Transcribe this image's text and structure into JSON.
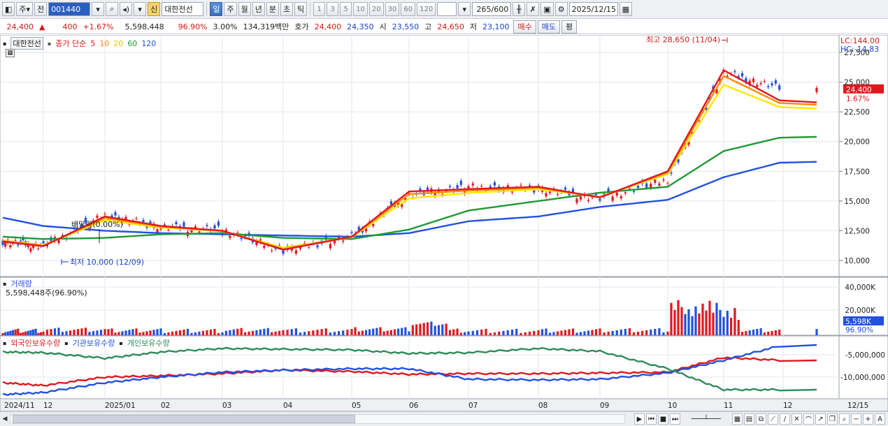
{
  "toolbar": {
    "market_toggle": "주",
    "prev_label": "전",
    "code": "001440",
    "new_badge": "신",
    "stock_name": "대한전선",
    "periods": [
      "일",
      "주",
      "월",
      "년",
      "분",
      "초",
      "틱"
    ],
    "active_period": "일",
    "minute_steps": [
      "1",
      "3",
      "5",
      "10",
      "20",
      "30",
      "60",
      "120"
    ],
    "count": "265",
    "count_max": "/600",
    "date": "2025/12/15"
  },
  "quote": {
    "price": "24,400",
    "change": "400",
    "change_pct": "+1.67%",
    "volume": "5,598,448",
    "volume_ratio": "96.90%",
    "rate": "3.00%",
    "amount": "134,319백만",
    "bid_label": "호가",
    "ask": "24,400",
    "bid": "24,350",
    "open_label": "시",
    "open": "23,550",
    "high_label": "고",
    "high": "24,650",
    "low_label": "저",
    "low": "23,100",
    "buy_btn": "매수",
    "sell_btn": "매도",
    "eval_btn": "평"
  },
  "price_panel": {
    "name_tag": "대한전선",
    "series_label": "종가 단순",
    "ma_periods": [
      "5",
      "10",
      "20",
      "60",
      "120"
    ],
    "ma_colors": [
      "#e0181e",
      "#ff8a00",
      "#ffe600",
      "#1e9a34",
      "#2250e0"
    ],
    "lc": "LC:144.00",
    "hc": "HC:-14.83",
    "y_ticks": [
      "27,500",
      "25,000",
      "22,500",
      "20,000",
      "17,500",
      "15,000",
      "12,500",
      "10,000"
    ],
    "current_price": "24,400",
    "current_pct": "1.67%",
    "high_annotation": "최고 28,650 (11/04)",
    "low_annotation": "최저 10,000 (12/09)",
    "dividend_annotation": "배당락(0.00%)"
  },
  "volume_panel": {
    "title": "거래량",
    "summary": "5,598,448주(96.90%)",
    "y_ticks": [
      "40,000K",
      "20,000K"
    ],
    "current": "5,598K",
    "current_pct": "96.90%"
  },
  "holding_panel": {
    "series": [
      "외국인보유수량",
      "기관보유수량",
      "개인보유수량"
    ],
    "colors": [
      "#e0181e",
      "#2250e0",
      "#2e8b57"
    ],
    "y_ticks": [
      "-5,000,000",
      "-10,000,000"
    ]
  },
  "x_axis": {
    "labels": [
      "2024/11",
      "12",
      "2025/01",
      "02",
      "03",
      "04",
      "05",
      "06",
      "07",
      "08",
      "09",
      "10",
      "11",
      "12",
      "12/15"
    ]
  },
  "chart_data": {
    "type": "line",
    "title": "대한전선",
    "ylim": [
      9000,
      28500
    ],
    "months": [
      "2024/11",
      "12",
      "2025/01",
      "02",
      "03",
      "04",
      "05",
      "06",
      "07",
      "08",
      "09",
      "10",
      "11",
      "12"
    ],
    "close_monthly": [
      11600,
      11200,
      13800,
      12800,
      12600,
      10800,
      12000,
      15500,
      16200,
      16000,
      15200,
      16800,
      25800,
      24400
    ],
    "series": [
      {
        "name": "5",
        "values": [
          11600,
          11200,
          13700,
          12900,
          12500,
          10900,
          12000,
          15800,
          16000,
          16200,
          15300,
          17500,
          26000,
          23300
        ]
      },
      {
        "name": "60",
        "values": [
          12000,
          11800,
          11900,
          12200,
          12300,
          11900,
          11800,
          12600,
          14200,
          15000,
          15700,
          16200,
          19200,
          20400
        ]
      },
      {
        "name": "120",
        "values": [
          13600,
          12900,
          12500,
          12300,
          12200,
          12100,
          12000,
          12300,
          13300,
          13700,
          14500,
          15100,
          17000,
          18300
        ]
      }
    ],
    "last_close": 24400,
    "high": {
      "value": 28650,
      "date": "11/04"
    },
    "low": {
      "value": 10000,
      "date": "12/09"
    }
  }
}
